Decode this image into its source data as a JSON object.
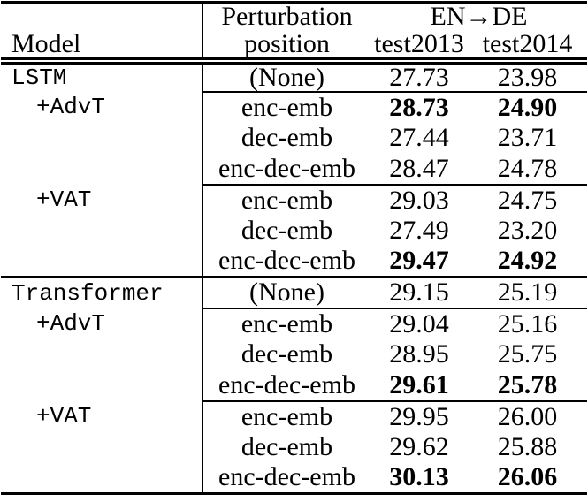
{
  "table": {
    "header": {
      "model_label": "Model",
      "perturbation_line1": "Perturbation",
      "perturbation_line2": "position",
      "group_label": "EN→DE",
      "test2013_label": "test2013",
      "test2014_label": "test2014"
    },
    "rows": [
      {
        "model": "LSTM",
        "pos": "(None)",
        "test2013": "27.73",
        "test2014": "23.98"
      },
      {
        "model": "+AdvT",
        "pos": "enc-emb",
        "test2013": "28.73",
        "test2014": "24.90"
      },
      {
        "model": "",
        "pos": "dec-emb",
        "test2013": "27.44",
        "test2014": "23.71"
      },
      {
        "model": "",
        "pos": "enc-dec-emb",
        "test2013": "28.47",
        "test2014": "24.78"
      },
      {
        "model": "+VAT",
        "pos": "enc-emb",
        "test2013": "29.03",
        "test2014": "24.75"
      },
      {
        "model": "",
        "pos": "dec-emb",
        "test2013": "27.49",
        "test2014": "23.20"
      },
      {
        "model": "",
        "pos": "enc-dec-emb",
        "test2013": "29.47",
        "test2014": "24.92"
      },
      {
        "model": "Transformer",
        "pos": "(None)",
        "test2013": "29.15",
        "test2014": "25.19"
      },
      {
        "model": "+AdvT",
        "pos": "enc-emb",
        "test2013": "29.04",
        "test2014": "25.16"
      },
      {
        "model": "",
        "pos": "dec-emb",
        "test2013": "28.95",
        "test2014": "25.75"
      },
      {
        "model": "",
        "pos": "enc-dec-emb",
        "test2013": "29.61",
        "test2014": "25.78"
      },
      {
        "model": "+VAT",
        "pos": "enc-emb",
        "test2013": "29.95",
        "test2014": "26.00"
      },
      {
        "model": "",
        "pos": "dec-emb",
        "test2013": "29.62",
        "test2014": "25.88"
      },
      {
        "model": "",
        "pos": "enc-dec-emb",
        "test2013": "30.13",
        "test2014": "26.06"
      }
    ],
    "colors": {
      "rule": "#000000",
      "text": "#000000",
      "background": "#ffffff"
    }
  }
}
